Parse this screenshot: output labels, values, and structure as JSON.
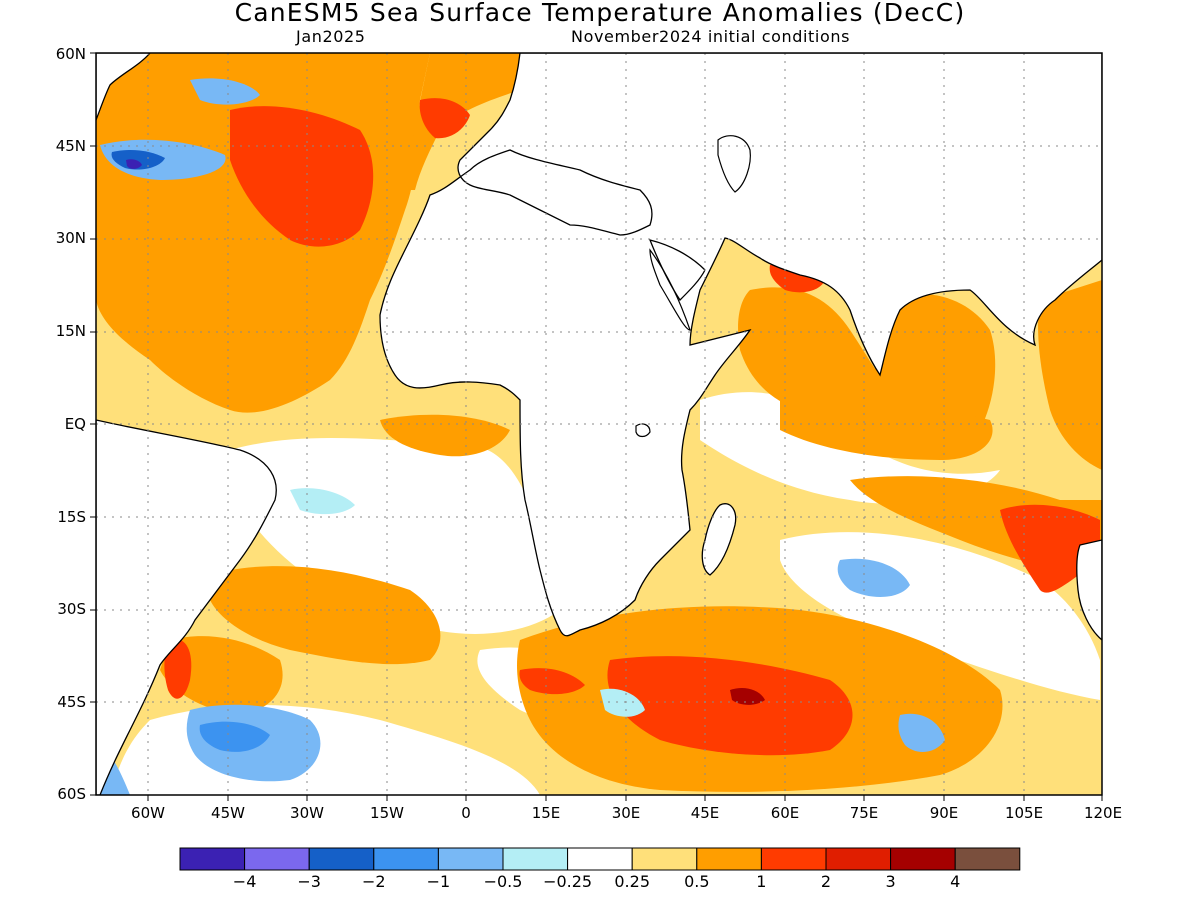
{
  "title": "CanESM5 Sea Surface Temperature Anomalies (DecC)",
  "subtitle_left": "Jan2025",
  "subtitle_right": "November2024 initial conditions",
  "latitude_labels": [
    "60N",
    "45N",
    "30N",
    "15N",
    "EQ",
    "15S",
    "30S",
    "45S",
    "60S"
  ],
  "longitude_labels": [
    "60W",
    "45W",
    "30W",
    "15W",
    "0",
    "15E",
    "30E",
    "45E",
    "60E",
    "75E",
    "90E",
    "105E",
    "120E"
  ],
  "colorbar": {
    "colors": [
      "#3b21b3",
      "#7b68ee",
      "#1560c8",
      "#3c93f0",
      "#78b8f5",
      "#b4eef5",
      "#ffffff",
      "#ffe07a",
      "#ff9e00",
      "#ff3b00",
      "#e01e00",
      "#a50000",
      "#7a4f3d"
    ],
    "labels": [
      "-4",
      "-3",
      "-2",
      "-1",
      "-0.5",
      "-0.25",
      "0.25",
      "0.5",
      "1",
      "2",
      "3",
      "4"
    ]
  }
}
